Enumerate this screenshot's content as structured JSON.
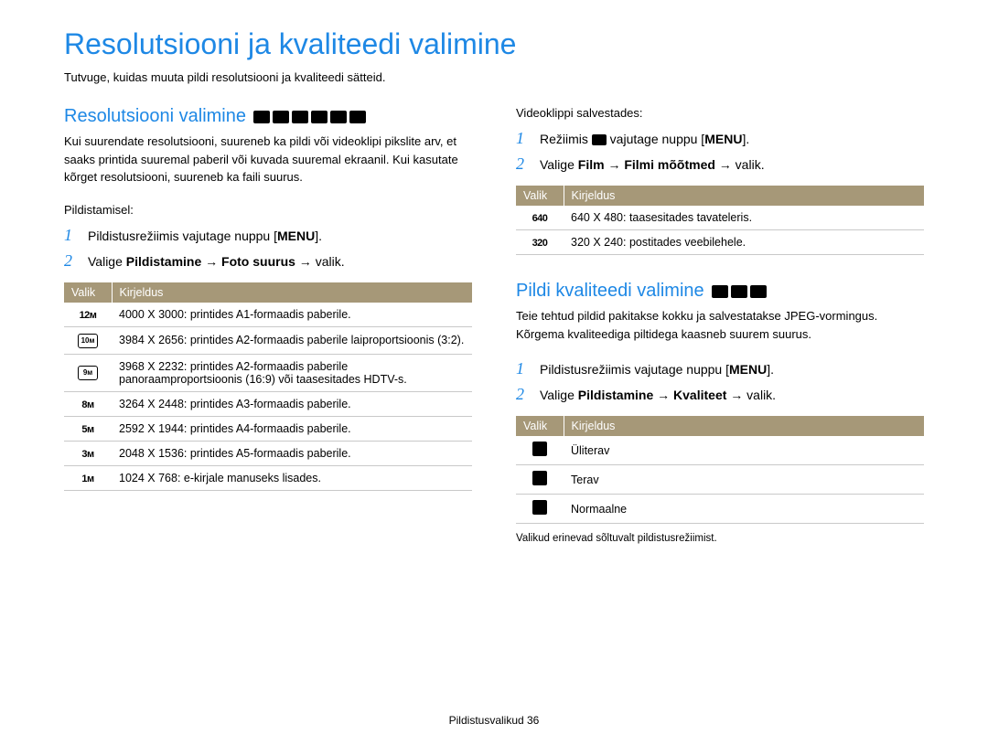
{
  "page": {
    "title": "Resolutsiooni ja kvaliteedi valimine",
    "intro": "Tutvuge, kuidas muuta pildi resolutsiooni ja kvaliteedi sätteid.",
    "footer": "Pildistusvalikud  36"
  },
  "left": {
    "section_title": "Resolutsiooni valimine",
    "body": "Kui suurendate resolutsiooni, suureneb ka pildi või videoklipi pikslite arv, et saaks printida suuremal paberil või kuvada suuremal ekraanil. Kui kasutate kõrget resolutsiooni, suureneb ka faili suurus.",
    "context": "Pildistamisel:",
    "step1": "Pildistusrežiimis vajutage nuppu [",
    "step1_menu": "MENU",
    "step1_end": "].",
    "step2_a": "Valige ",
    "step2_b": "Pildistamine",
    "step2_c": " → ",
    "step2_d": "Foto suurus",
    "step2_e": " → valik.",
    "table": {
      "h1": "Valik",
      "h2": "Kirjeldus",
      "rows": [
        {
          "v": "12ᴍ",
          "d": "4000 X 3000: printides A1-formaadis paberile."
        },
        {
          "v": "⬚10ᴍ",
          "d": "3984 X 2656: printides A2-formaadis paberile laiproportsioonis (3:2)."
        },
        {
          "v": "⬚9ᴍ",
          "d": "3968 X 2232: printides A2-formaadis paberile panoraamproportsioonis (16:9) või taasesitades HDTV-s."
        },
        {
          "v": "8ᴍ",
          "d": "3264 X 2448: printides A3-formaadis paberile."
        },
        {
          "v": "5ᴍ",
          "d": "2592 X 1944: printides A4-formaadis paberile."
        },
        {
          "v": "3ᴍ",
          "d": "2048 X 1536: printides A5-formaadis paberile."
        },
        {
          "v": "1ᴍ",
          "d": "1024 X 768: e-kirjale manuseks lisades."
        }
      ]
    }
  },
  "right": {
    "video_context": "Videoklippi salvestades:",
    "v_step1_a": "Režiimis ",
    "v_step1_b": " vajutage nuppu [",
    "v_step1_menu": "MENU",
    "v_step1_end": "].",
    "v_step2_a": "Valige ",
    "v_step2_b": "Film",
    "v_step2_c": " → ",
    "v_step2_d": "Filmi mõõtmed",
    "v_step2_e": " → valik.",
    "vtable": {
      "h1": "Valik",
      "h2": "Kirjeldus",
      "rows": [
        {
          "v": "640",
          "d": "640 X 480: taasesitades tavateleris."
        },
        {
          "v": "320",
          "d": "320 X 240: postitades veebilehele."
        }
      ]
    },
    "quality": {
      "title": "Pildi kvaliteedi valimine",
      "body": "Teie tehtud pildid pakitakse kokku ja salvestatakse JPEG-vormingus. Kõrgema kvaliteediga piltidega kaasneb suurem suurus.",
      "step1": "Pildistusrežiimis vajutage nuppu [",
      "step1_menu": "MENU",
      "step1_end": "].",
      "step2_a": "Valige ",
      "step2_b": "Pildistamine",
      "step2_c": " → ",
      "step2_d": "Kvaliteet",
      "step2_e": " → valik.",
      "table": {
        "h1": "Valik",
        "h2": "Kirjeldus",
        "rows": [
          {
            "d": "Üliterav"
          },
          {
            "d": "Terav"
          },
          {
            "d": "Normaalne"
          }
        ]
      },
      "footnote": "Valikud erinevad sõltuvalt pildistusrežiimist."
    }
  }
}
